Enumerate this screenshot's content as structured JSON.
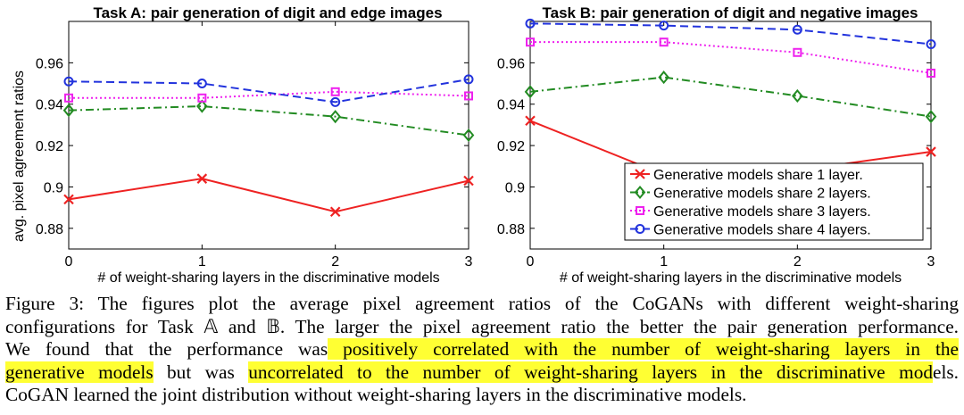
{
  "figure": {
    "ylabel_shared": "avg. pixel agreement ratios",
    "legend": [
      "Generative models share 1 layer.",
      "Generative models share 2 layers.",
      "Generative models share 3 layers.",
      "Generative models share 4 layers."
    ]
  },
  "chart_data": [
    {
      "type": "line",
      "title": "Task A: pair generation of digit and edge images",
      "xlabel": "# of weight-sharing layers in the discriminative models",
      "ylabel": "avg. pixel agreement ratios",
      "x": [
        0,
        1,
        2,
        3
      ],
      "xlim": [
        0,
        3
      ],
      "ylim": [
        0.87,
        0.98
      ],
      "xticks": [
        "0",
        "1",
        "2",
        "3"
      ],
      "yticks": [
        "0.88",
        "0.9",
        "0.92",
        "0.94",
        "0.96"
      ],
      "series": [
        {
          "name": "Generative models share 1 layer.",
          "values": [
            0.894,
            0.904,
            0.888,
            0.903
          ],
          "color": "#ee2222",
          "marker": "x",
          "dash": "solid"
        },
        {
          "name": "Generative models share 2 layers.",
          "values": [
            0.937,
            0.939,
            0.934,
            0.925
          ],
          "color": "#228b22",
          "marker": "diamond",
          "dash": "dashdot"
        },
        {
          "name": "Generative models share 3 layers.",
          "values": [
            0.943,
            0.943,
            0.946,
            0.944
          ],
          "color": "#ee22ee",
          "marker": "square",
          "dash": "dotted"
        },
        {
          "name": "Generative models share 4 layers.",
          "values": [
            0.951,
            0.95,
            0.941,
            0.952
          ],
          "color": "#2233dd",
          "marker": "circle",
          "dash": "dashed"
        }
      ]
    },
    {
      "type": "line",
      "title": "Task B: pair generation of digit and negative images",
      "xlabel": "# of weight-sharing layers in the discriminative models",
      "ylabel": "",
      "x": [
        0,
        1,
        2,
        3
      ],
      "xlim": [
        0,
        3
      ],
      "ylim": [
        0.87,
        0.98
      ],
      "xticks": [
        "0",
        "1",
        "2",
        "3"
      ],
      "yticks": [
        "0.88",
        "0.9",
        "0.92",
        "0.94",
        "0.96"
      ],
      "legend_position": "bottom-right",
      "series": [
        {
          "name": "Generative models share 1 layer.",
          "values": [
            0.932,
            0.906,
            0.908,
            0.917
          ],
          "color": "#ee2222",
          "marker": "x",
          "dash": "solid"
        },
        {
          "name": "Generative models share 2 layers.",
          "values": [
            0.946,
            0.953,
            0.944,
            0.934
          ],
          "color": "#228b22",
          "marker": "diamond",
          "dash": "dashdot"
        },
        {
          "name": "Generative models share 3 layers.",
          "values": [
            0.97,
            0.97,
            0.965,
            0.955
          ],
          "color": "#ee22ee",
          "marker": "square",
          "dash": "dotted"
        },
        {
          "name": "Generative models share 4 layers.",
          "values": [
            0.979,
            0.978,
            0.976,
            0.969
          ],
          "color": "#2233dd",
          "marker": "circle",
          "dash": "dashed"
        }
      ]
    }
  ],
  "caption": {
    "line1": "Figure 3: The figures plot the average pixel agreement ratios of the CoGANs with different weight-sharing",
    "line2": "configurations for Task 𝔸 and 𝔹. The larger the pixel agreement ratio the better the pair generation performance.",
    "line3_plain": "We found that the performance was",
    "line3_hl": " positively correlated with the number of weight-sharing layers in the",
    "line4_hl1": "generative models",
    "line4_plain1": " but was ",
    "line4_hl2": "uncorrelated to the number of weight-sharing layers in the discriminative mod",
    "line4_plain2": "els.",
    "line5": "CoGAN learned the joint distribution without weight-sharing layers in the discriminative models."
  }
}
